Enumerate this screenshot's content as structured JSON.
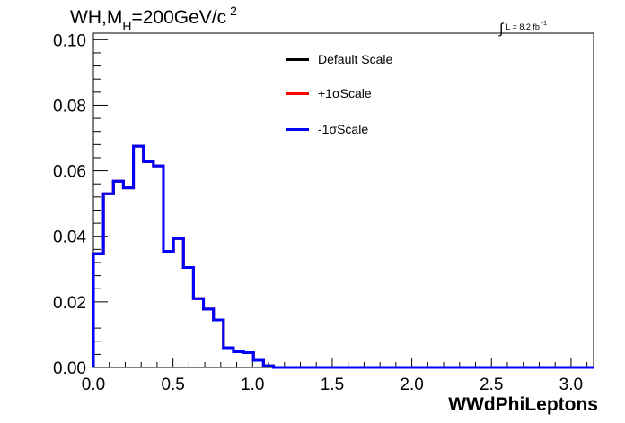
{
  "title": {
    "main": "WH,M",
    "sub": "H",
    "rest": "=200GeV/c",
    "sup": "2"
  },
  "luminosity": {
    "integral": "∫",
    "text": "L = 8.2 fb",
    "sup": "-1"
  },
  "legend": [
    {
      "label": "Default Scale",
      "color": "#000000"
    },
    {
      "label": "+1σScale",
      "color": "#ff0000"
    },
    {
      "label": "-1σScale",
      "color": "#0000ff"
    }
  ],
  "chart_data": {
    "type": "histogram",
    "xlabel": "WWdPhiLeptons",
    "ylabel": "",
    "xlim": [
      0,
      3.1416
    ],
    "ylim": [
      0,
      0.102
    ],
    "xticks": [
      "0.0",
      "0.5",
      "1.0",
      "1.5",
      "2.0",
      "2.5",
      "3.0"
    ],
    "xtick_values": [
      0,
      0.5,
      1.0,
      1.5,
      2.0,
      2.5,
      3.0
    ],
    "yticks": [
      "0.00",
      "0.02",
      "0.04",
      "0.06",
      "0.08",
      "0.10"
    ],
    "ytick_values": [
      0,
      0.02,
      0.04,
      0.06,
      0.08,
      0.1
    ],
    "bin_edges": [
      0,
      0.0628,
      0.1257,
      0.1885,
      0.2513,
      0.3142,
      0.377,
      0.4398,
      0.5027,
      0.5655,
      0.6283,
      0.6912,
      0.754,
      0.8168,
      0.8796,
      0.9425,
      1.0053,
      1.0681,
      1.131,
      1.1938,
      1.2566,
      1.3195,
      1.3823,
      1.4451,
      1.508,
      1.5708,
      1.6336,
      1.6965,
      1.7593,
      1.8221,
      1.885,
      1.9478,
      2.0106,
      2.0735,
      2.1363,
      2.1991,
      2.2619,
      2.3248,
      2.3876,
      2.4504,
      2.5133,
      2.5761,
      2.6389,
      2.7018,
      2.7646,
      2.8274,
      2.8903,
      2.9531,
      3.0159,
      3.0788,
      3.1416
    ],
    "series": [
      {
        "name": "Default Scale",
        "color": "#000000",
        "values": [
          0.0347,
          0.053,
          0.0568,
          0.0548,
          0.0675,
          0.0628,
          0.0615,
          0.0354,
          0.0393,
          0.0305,
          0.021,
          0.0178,
          0.0145,
          0.006,
          0.0048,
          0.0045,
          0.0022,
          0.0005,
          0,
          0,
          0,
          0,
          0,
          0,
          0,
          0,
          0,
          0,
          0,
          0,
          0,
          0,
          0,
          0,
          0,
          0,
          0,
          0,
          0,
          0,
          0,
          0,
          0,
          0,
          0,
          0,
          0,
          0,
          0,
          0
        ]
      },
      {
        "name": "+1σScale",
        "color": "#ff0000",
        "values": [
          0.0347,
          0.053,
          0.0568,
          0.0548,
          0.0675,
          0.0628,
          0.0615,
          0.0354,
          0.0393,
          0.0305,
          0.021,
          0.0178,
          0.0145,
          0.006,
          0.0048,
          0.0045,
          0.0022,
          0.0005,
          0,
          0,
          0,
          0,
          0,
          0,
          0,
          0,
          0,
          0,
          0,
          0,
          0,
          0,
          0,
          0,
          0,
          0,
          0,
          0,
          0,
          0,
          0,
          0,
          0,
          0,
          0,
          0,
          0,
          0,
          0,
          0
        ]
      },
      {
        "name": "-1σScale",
        "color": "#0000ff",
        "values": [
          0.0347,
          0.053,
          0.0568,
          0.0548,
          0.0675,
          0.0628,
          0.0615,
          0.0354,
          0.0393,
          0.0305,
          0.021,
          0.0178,
          0.0145,
          0.006,
          0.0048,
          0.0045,
          0.0022,
          0.0005,
          0,
          0,
          0,
          0,
          0,
          0,
          0,
          0,
          0,
          0,
          0,
          0,
          0,
          0,
          0,
          0,
          0,
          0,
          0,
          0,
          0,
          0,
          0,
          0,
          0,
          0,
          0,
          0,
          0,
          0,
          0,
          0
        ]
      }
    ],
    "grid": false,
    "legend_position": "top-center"
  }
}
